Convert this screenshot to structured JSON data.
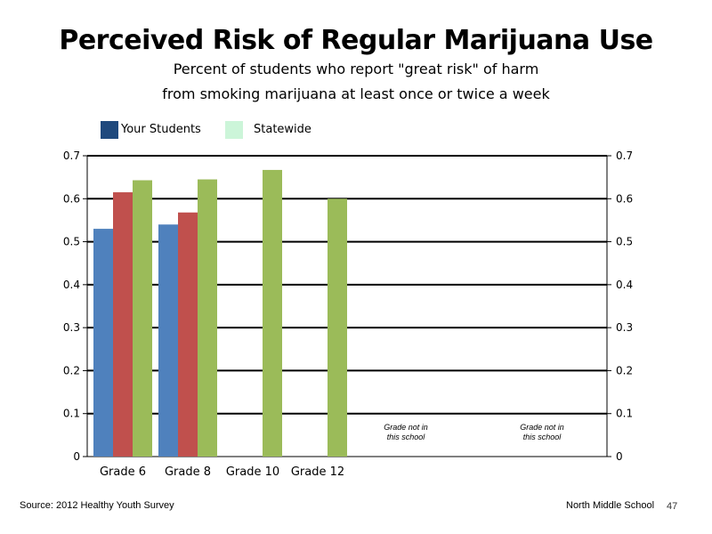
{
  "chart_data": {
    "type": "bar",
    "title": "Perceived Risk of Regular Marijuana Use",
    "subtitle_line1": "Percent of students who report \"great risk\" of harm",
    "subtitle_line2": "from smoking marijuana at least once or twice a week",
    "categories": [
      "Grade 6",
      "Grade 8",
      "Grade 10",
      "Grade 12"
    ],
    "series": [
      {
        "name": "",
        "color": "#4F81BD",
        "values": [
          0.53,
          0.54,
          null,
          null
        ]
      },
      {
        "name": "",
        "color": "#C0504D",
        "values": [
          0.615,
          0.568,
          null,
          null
        ]
      },
      {
        "name": "",
        "color": "#9BBB59",
        "values": [
          0.643,
          0.645,
          0.667,
          0.6
        ]
      }
    ],
    "legend": [
      {
        "label": "Your Students",
        "color": "#1F497D"
      },
      {
        "label": "Statewide",
        "color": "#CCF5D9"
      }
    ],
    "legend_position": "top-left",
    "ylim": [
      0,
      0.7
    ],
    "yticks": [
      "0",
      "0.1",
      "0.2",
      "0.3",
      "0.4",
      "0.5",
      "0.6",
      "0.7"
    ],
    "grid": true,
    "annotations": [
      {
        "line1": "Grade not in",
        "line2": "this school"
      },
      {
        "line1": "Grade not in",
        "line2": "this school"
      }
    ]
  },
  "footer": {
    "source": "Source: 2012 Healthy Youth Survey",
    "school": "North Middle School",
    "page_number": "47"
  }
}
